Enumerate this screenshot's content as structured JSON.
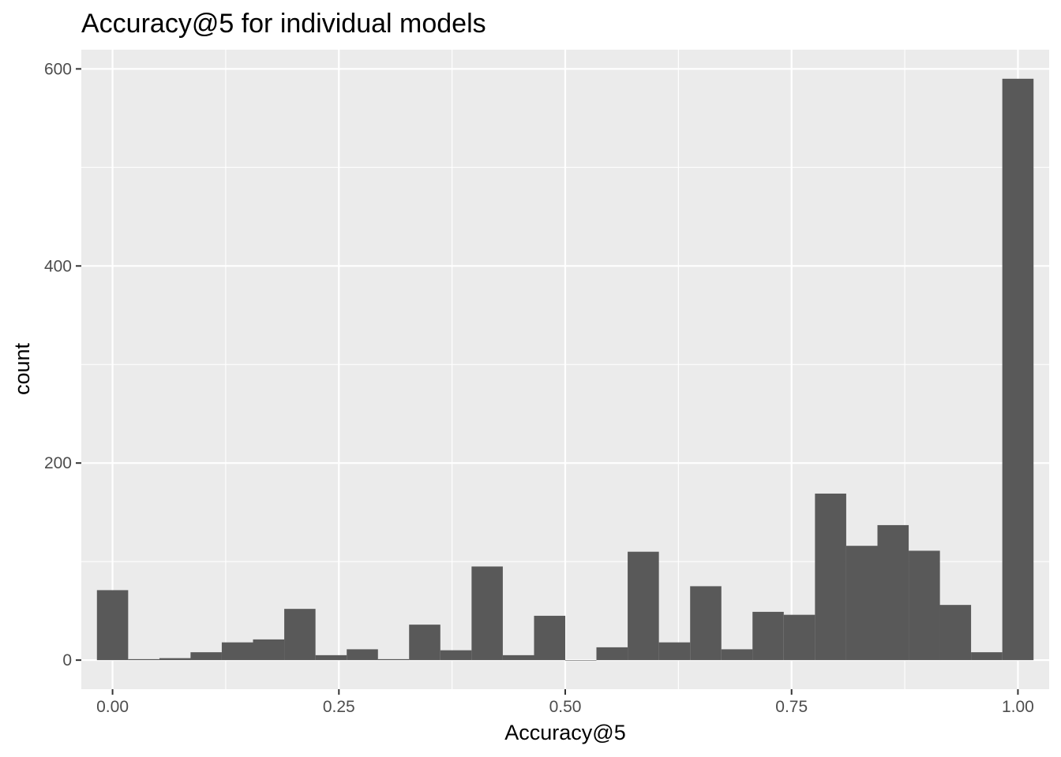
{
  "chart_data": {
    "type": "bar",
    "title": "Accuracy@5 for individual models",
    "xlabel": "Accuracy@5",
    "ylabel": "count",
    "bin_width": 0.0345,
    "bins": [
      {
        "x": 0.0,
        "count": 71
      },
      {
        "x": 0.0345,
        "count": 1
      },
      {
        "x": 0.069,
        "count": 2
      },
      {
        "x": 0.1034,
        "count": 8
      },
      {
        "x": 0.1379,
        "count": 18
      },
      {
        "x": 0.1724,
        "count": 21
      },
      {
        "x": 0.2069,
        "count": 52
      },
      {
        "x": 0.2414,
        "count": 5
      },
      {
        "x": 0.2759,
        "count": 11
      },
      {
        "x": 0.3103,
        "count": 1
      },
      {
        "x": 0.3448,
        "count": 36
      },
      {
        "x": 0.3793,
        "count": 10
      },
      {
        "x": 0.4138,
        "count": 95
      },
      {
        "x": 0.4483,
        "count": 5
      },
      {
        "x": 0.4828,
        "count": 45
      },
      {
        "x": 0.5172,
        "count": 0
      },
      {
        "x": 0.5517,
        "count": 13
      },
      {
        "x": 0.5862,
        "count": 110
      },
      {
        "x": 0.6207,
        "count": 18
      },
      {
        "x": 0.6552,
        "count": 75
      },
      {
        "x": 0.6897,
        "count": 11
      },
      {
        "x": 0.7241,
        "count": 49
      },
      {
        "x": 0.7586,
        "count": 46
      },
      {
        "x": 0.7931,
        "count": 169
      },
      {
        "x": 0.8276,
        "count": 116
      },
      {
        "x": 0.8621,
        "count": 137
      },
      {
        "x": 0.8966,
        "count": 111
      },
      {
        "x": 0.931,
        "count": 56
      },
      {
        "x": 0.9655,
        "count": 8
      },
      {
        "x": 1.0,
        "count": 590
      }
    ],
    "xlim": [
      -0.0345,
      1.0345
    ],
    "ylim": [
      -29.5,
      619.5
    ],
    "x_ticks": [
      0.0,
      0.25,
      0.5,
      0.75,
      1.0
    ],
    "x_tick_labels": [
      "0.00",
      "0.25",
      "0.50",
      "0.75",
      "1.00"
    ],
    "y_ticks": [
      0,
      200,
      400,
      600
    ],
    "y_tick_labels": [
      "0",
      "200",
      "400",
      "600"
    ],
    "grid": true,
    "colors": {
      "panel": "#ebebeb",
      "bar": "#595959",
      "grid": "#ffffff",
      "tick_label": "#4d4d4d",
      "tick_mark": "#333333"
    }
  }
}
